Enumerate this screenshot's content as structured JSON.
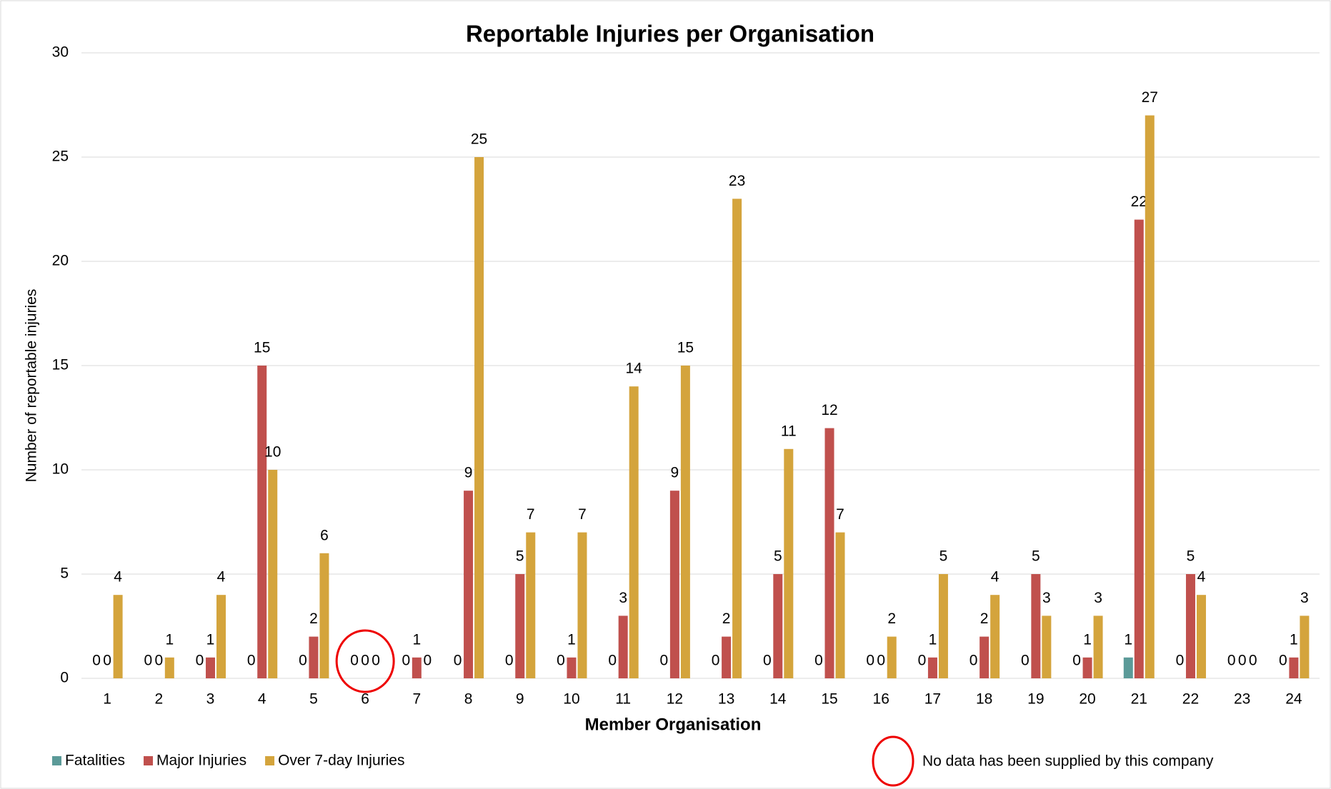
{
  "chart_data": {
    "type": "bar",
    "title": "Reportable Injuries per Organisation",
    "x_label": "Member Organisation",
    "y_label": "Number of reportable injuries",
    "categories": [
      "1",
      "2",
      "3",
      "4",
      "5",
      "6",
      "7",
      "8",
      "9",
      "10",
      "11",
      "12",
      "13",
      "14",
      "15",
      "16",
      "17",
      "18",
      "19",
      "20",
      "21",
      "22",
      "23",
      "24"
    ],
    "series": [
      {
        "name": "Fatalities",
        "color": "#5b9a98",
        "values": [
          0,
          0,
          0,
          0,
          0,
          0,
          0,
          0,
          0,
          0,
          0,
          0,
          0,
          0,
          0,
          0,
          0,
          0,
          0,
          0,
          1,
          0,
          0,
          0
        ]
      },
      {
        "name": "Major Injuries",
        "color": "#c0504d",
        "values": [
          0,
          0,
          1,
          15,
          2,
          0,
          1,
          9,
          5,
          1,
          3,
          9,
          2,
          5,
          12,
          0,
          1,
          2,
          5,
          1,
          22,
          5,
          0,
          1
        ]
      },
      {
        "name": "Over 7-day Injuries",
        "color": "#d4a43c",
        "values": [
          4,
          1,
          4,
          10,
          6,
          0,
          0,
          25,
          7,
          7,
          14,
          15,
          23,
          11,
          7,
          2,
          5,
          4,
          3,
          3,
          27,
          4,
          0,
          3
        ]
      }
    ],
    "ylim": [
      0,
      30
    ],
    "yticks": [
      0,
      5,
      10,
      15,
      20,
      25,
      30
    ],
    "grid": true,
    "annotation": "No data has been supplied by this company"
  }
}
